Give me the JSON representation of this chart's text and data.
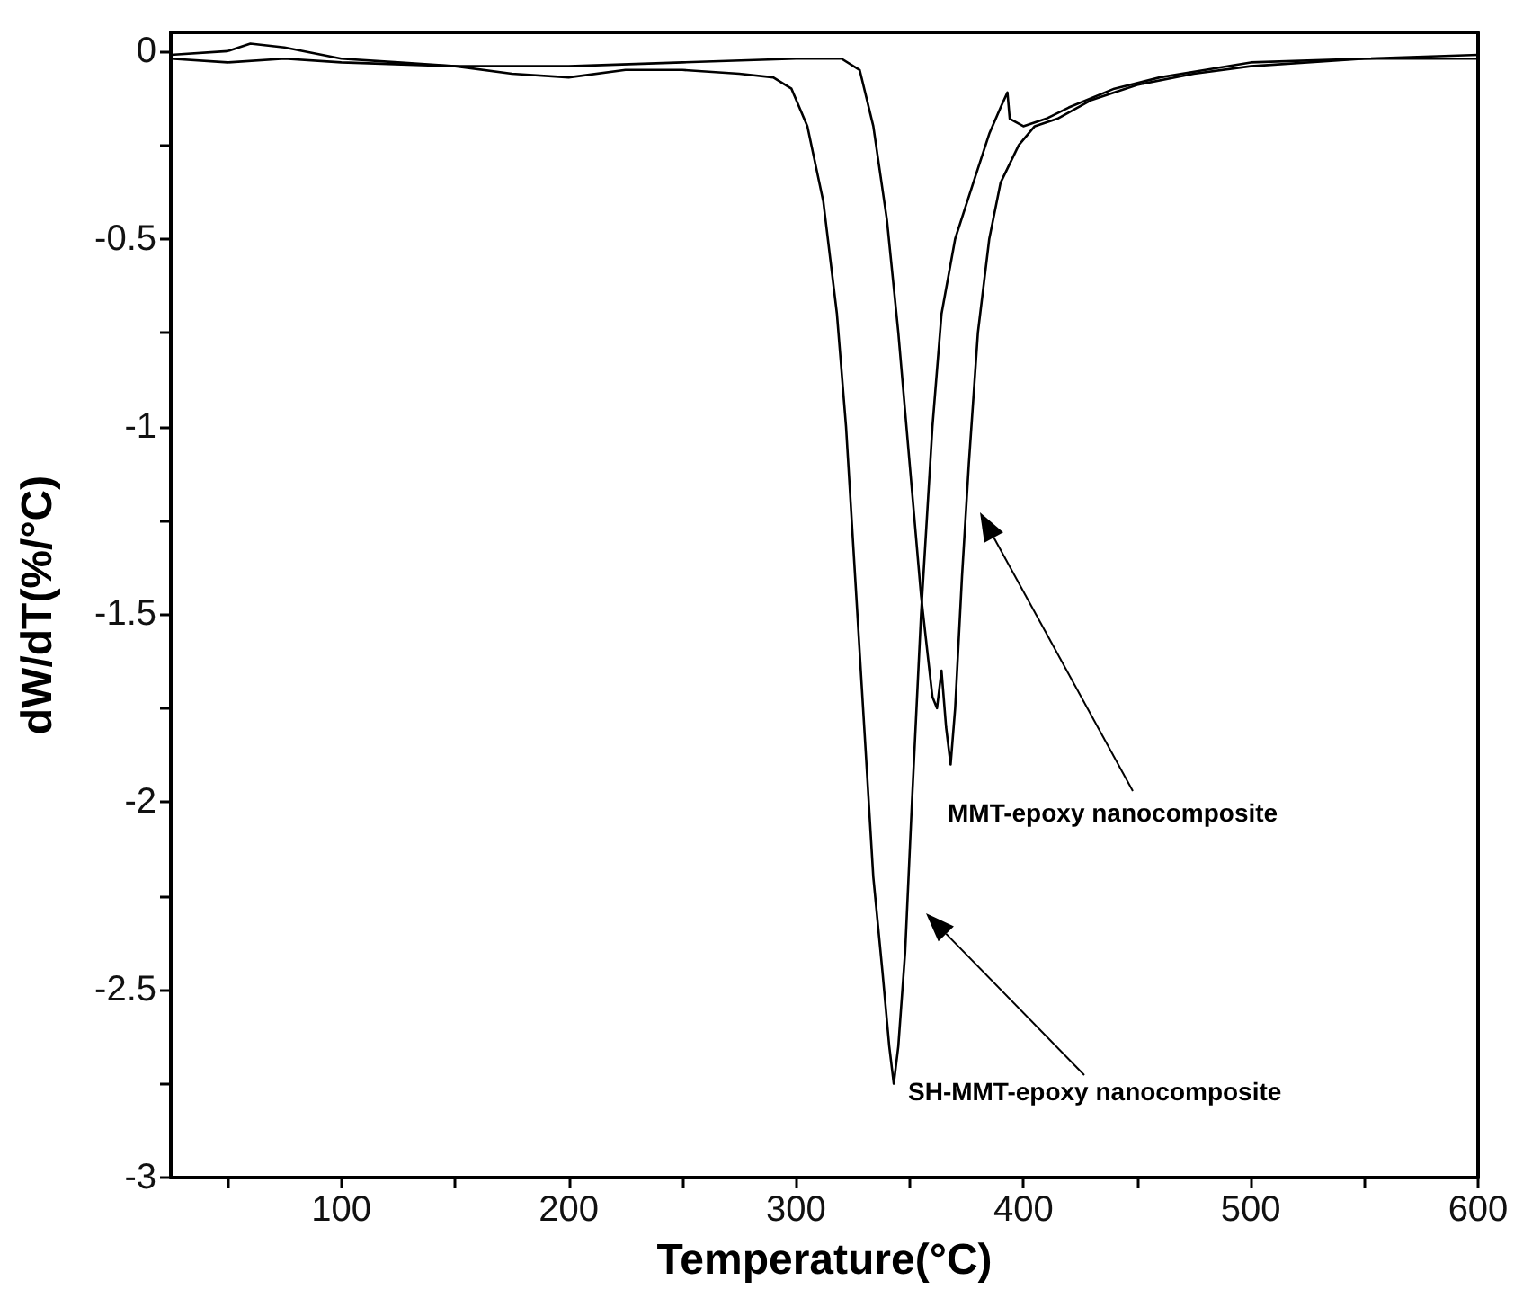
{
  "chart_data": {
    "type": "line",
    "xlabel": "Temperature(°C)",
    "ylabel": "dW/dT(%/°C)",
    "xlim": [
      25,
      600
    ],
    "ylim": [
      -3,
      0.05
    ],
    "xticks": [
      {
        "value": 50,
        "label": null
      },
      100,
      {
        "value": 150,
        "label": null
      },
      200,
      {
        "value": 250,
        "label": null
      },
      300,
      {
        "value": 350,
        "label": null
      },
      400,
      {
        "value": 450,
        "label": null
      },
      500,
      {
        "value": 550,
        "label": null
      },
      600
    ],
    "yticks": [
      -3,
      {
        "value": -2.75,
        "label": null
      },
      -2.5,
      {
        "value": -2.25,
        "label": null
      },
      -2,
      {
        "value": -1.75,
        "label": null
      },
      -1.5,
      {
        "value": -1.25,
        "label": null
      },
      -1,
      {
        "value": -0.75,
        "label": null
      },
      -0.5,
      {
        "value": -0.25,
        "label": null
      },
      0
    ],
    "grid": false,
    "marker": "none",
    "line_style": "solid",
    "series": [
      {
        "color": "#000000",
        "x": [
          25,
          50,
          60,
          75,
          100,
          125,
          150,
          175,
          200,
          225,
          250,
          275,
          290,
          298,
          305,
          312,
          318,
          322,
          326,
          330,
          334,
          338,
          341,
          343,
          345,
          348,
          351,
          355,
          360,
          364,
          370,
          378,
          385,
          390,
          393,
          394,
          400,
          410,
          420,
          440,
          460,
          480,
          500,
          550,
          600
        ],
        "values": [
          -0.01,
          0,
          0.02,
          0.01,
          -0.02,
          -0.03,
          -0.04,
          -0.06,
          -0.07,
          -0.05,
          -0.05,
          -0.06,
          -0.07,
          -0.1,
          -0.2,
          -0.4,
          -0.7,
          -1,
          -1.4,
          -1.8,
          -2.2,
          -2.45,
          -2.65,
          -2.75,
          -2.65,
          -2.4,
          -2,
          -1.5,
          -1,
          -0.7,
          -0.5,
          -0.35,
          -0.22,
          -0.15,
          -0.11,
          -0.18,
          -0.2,
          -0.18,
          -0.15,
          -0.1,
          -0.07,
          -0.05,
          -0.03,
          -0.02,
          -0.01
        ]
      },
      {
        "color": "#000000",
        "x": [
          25,
          50,
          75,
          100,
          150,
          200,
          250,
          300,
          320,
          328,
          334,
          340,
          345,
          350,
          355,
          360,
          362,
          364,
          366,
          368,
          370,
          373,
          376,
          380,
          385,
          390,
          398,
          405,
          415,
          430,
          450,
          475,
          500,
          550,
          600
        ],
        "values": [
          -0.02,
          -0.03,
          -0.02,
          -0.03,
          -0.04,
          -0.04,
          -0.03,
          -0.02,
          -0.02,
          -0.05,
          -0.2,
          -0.45,
          -0.75,
          -1.1,
          -1.45,
          -1.72,
          -1.75,
          -1.65,
          -1.8,
          -1.9,
          -1.75,
          -1.4,
          -1.1,
          -0.75,
          -0.5,
          -0.35,
          -0.25,
          -0.2,
          -0.18,
          -0.13,
          -0.09,
          -0.06,
          -0.04,
          -0.02,
          -0.02
        ]
      }
    ],
    "annotations": [
      "MMT-epoxy nanocomposite",
      "SH-MMT-epoxy nanocomposite"
    ]
  }
}
